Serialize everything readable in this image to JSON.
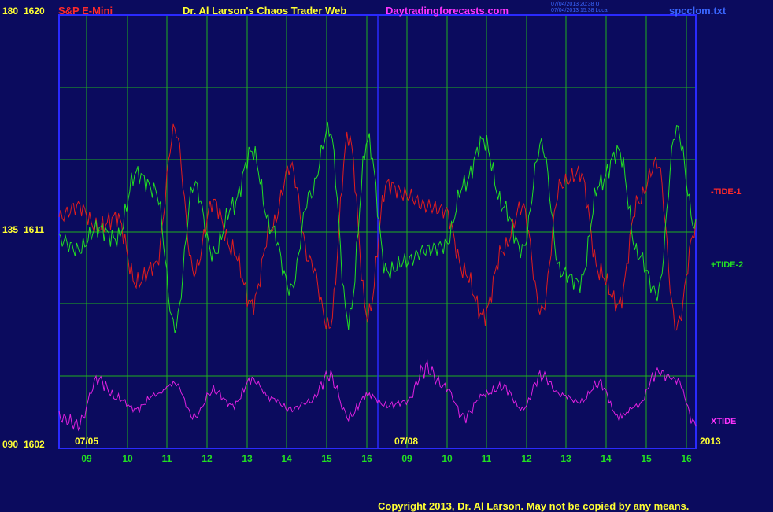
{
  "header": {
    "instrument": "S&P E-Mini",
    "title": "Dr. Al Larson's Chaos Trader Web",
    "site": "Daytradingforecasts.com",
    "timestamp_ut": "07/04/2013 20:38 UT",
    "timestamp_local": "07/04/2013 15:38 Local",
    "filename": "spcclom.txt"
  },
  "copyright": "Copyright 2013, Dr. Al Larson. May not be copied by any means.",
  "colors": {
    "background": "#0b0b5e",
    "frame": "#2a2aff",
    "grid": "#1fb01f",
    "tide1": "#e11d1d",
    "tide2": "#22e022",
    "xtide": "#e021e0",
    "label_yellow": "#ffff33",
    "label_green": "#22e022",
    "label_red": "#ff2a2a",
    "label_magenta": "#ff33ff"
  },
  "chart_data": {
    "type": "line",
    "y_axis_labels": [
      {
        "deg": "180",
        "price": "1620"
      },
      {
        "deg": "135",
        "price": "1611"
      },
      {
        "deg": "090",
        "price": "1602"
      }
    ],
    "ylim_deg": [
      90,
      180
    ],
    "ylim_price": [
      1602,
      1620
    ],
    "x_tick_labels": [
      "09",
      "10",
      "11",
      "12",
      "13",
      "14",
      "15",
      "16",
      "09",
      "10",
      "11",
      "12",
      "13",
      "14",
      "15",
      "16"
    ],
    "date_labels": [
      "07/05",
      "07/08"
    ],
    "year_label": "2013",
    "x": [
      0,
      0.5,
      1,
      1.5,
      2,
      2.5,
      3,
      3.5,
      4,
      4.5,
      5,
      5.5,
      6,
      6.5,
      7,
      7.5,
      8,
      8.5,
      9,
      9.5,
      10,
      10.5,
      11,
      11.5,
      12,
      12.5,
      13,
      13.5,
      14,
      14.5,
      15,
      15.5,
      16,
      16.5
    ],
    "series": [
      {
        "name": "-TIDE-1",
        "values": [
          0.55,
          0.6,
          0.5,
          0.55,
          0.25,
          0.33,
          0.95,
          0.3,
          0.62,
          0.4,
          0.15,
          0.5,
          0.78,
          0.35,
          0.05,
          0.92,
          0.1,
          0.7,
          0.65,
          0.6,
          0.58,
          0.3,
          0.1,
          0.4,
          0.6,
          0.12,
          0.7,
          0.75,
          0.3,
          0.15,
          0.62,
          0.8,
          0.05,
          0.5
        ]
      },
      {
        "name": "+TIDE-2",
        "values": [
          0.45,
          0.4,
          0.5,
          0.45,
          0.75,
          0.67,
          0.05,
          0.7,
          0.38,
          0.6,
          0.85,
          0.5,
          0.22,
          0.65,
          0.95,
          0.08,
          0.9,
          0.3,
          0.35,
          0.4,
          0.42,
          0.7,
          0.9,
          0.6,
          0.4,
          0.88,
          0.3,
          0.25,
          0.7,
          0.85,
          0.38,
          0.2,
          0.95,
          0.5
        ]
      },
      {
        "name": "XTIDE",
        "values": [
          0.3,
          0.2,
          0.8,
          0.55,
          0.4,
          0.6,
          0.75,
          0.3,
          0.65,
          0.45,
          0.8,
          0.55,
          0.4,
          0.5,
          0.85,
          0.3,
          0.6,
          0.45,
          0.5,
          0.95,
          0.7,
          0.3,
          0.6,
          0.7,
          0.4,
          0.85,
          0.6,
          0.5,
          0.75,
          0.3,
          0.45,
          0.9,
          0.8,
          0.2
        ]
      }
    ]
  }
}
